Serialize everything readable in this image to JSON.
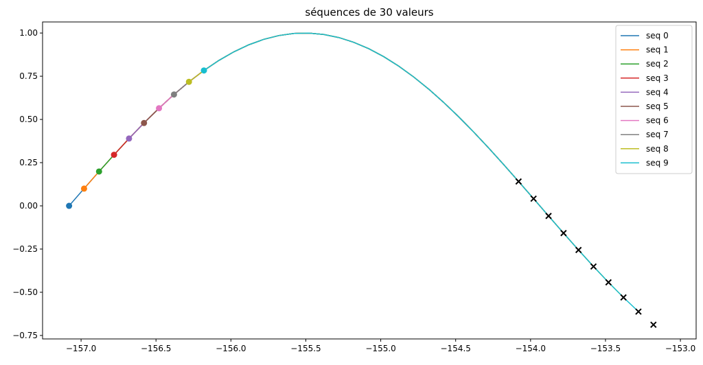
{
  "chart_data": {
    "type": "line",
    "title": "séquences de 30 valeurs",
    "xlabel": "",
    "ylabel": "",
    "xlim": [
      -157.257,
      -152.895
    ],
    "ylim": [
      -0.77,
      1.064
    ],
    "xticks": [
      -157.0,
      -156.5,
      -156.0,
      -155.5,
      -155.0,
      -154.5,
      -154.0,
      -153.5,
      -153.0
    ],
    "xtick_labels": [
      "−157.0",
      "−156.5",
      "−156.0",
      "−155.5",
      "−155.0",
      "−154.5",
      "−154.0",
      "−153.5",
      "−153.0"
    ],
    "yticks": [
      1.0,
      0.75,
      0.5,
      0.25,
      0.0,
      -0.25,
      -0.5,
      -0.75
    ],
    "ytick_labels": [
      "1.00",
      "0.75",
      "0.50",
      "0.25",
      "0.00",
      "−0.25",
      "−0.50",
      "−0.75"
    ],
    "grid": false,
    "legend_position": "top-right",
    "x_start": -157.08,
    "x_step": 0.1,
    "y": [
      0,
      0.0998,
      0.1987,
      0.2955,
      0.3894,
      0.4794,
      0.5646,
      0.6442,
      0.7174,
      0.7833,
      0.8415,
      0.8912,
      0.932,
      0.9636,
      0.9854,
      0.9975,
      0.9996,
      0.9917,
      0.9738,
      0.9463,
      0.9093,
      0.8632,
      0.8085,
      0.7457,
      0.6755,
      0.5985,
      0.5155,
      0.4274,
      0.335,
      0.2392,
      0.1411,
      0.0416,
      -0.0584,
      -0.1577,
      -0.2555,
      -0.3508,
      -0.4425,
      -0.5298,
      -0.6119,
      -0.6878
    ],
    "sequence_length": 30,
    "series": [
      {
        "name": "seq 0",
        "start_index": 0,
        "color": "#1f77b4"
      },
      {
        "name": "seq 1",
        "start_index": 1,
        "color": "#ff7f0e"
      },
      {
        "name": "seq 2",
        "start_index": 2,
        "color": "#2ca02c"
      },
      {
        "name": "seq 3",
        "start_index": 3,
        "color": "#d62728"
      },
      {
        "name": "seq 4",
        "start_index": 4,
        "color": "#9467bd"
      },
      {
        "name": "seq 5",
        "start_index": 5,
        "color": "#8c564b"
      },
      {
        "name": "seq 6",
        "start_index": 6,
        "color": "#e377c2"
      },
      {
        "name": "seq 7",
        "start_index": 7,
        "color": "#7f7f7f"
      },
      {
        "name": "seq 8",
        "start_index": 8,
        "color": "#bcbd22"
      },
      {
        "name": "seq 9",
        "start_index": 9,
        "color": "#17becf"
      }
    ],
    "start_marker": "circle",
    "target_marker": "x",
    "target_color": "#000000"
  }
}
